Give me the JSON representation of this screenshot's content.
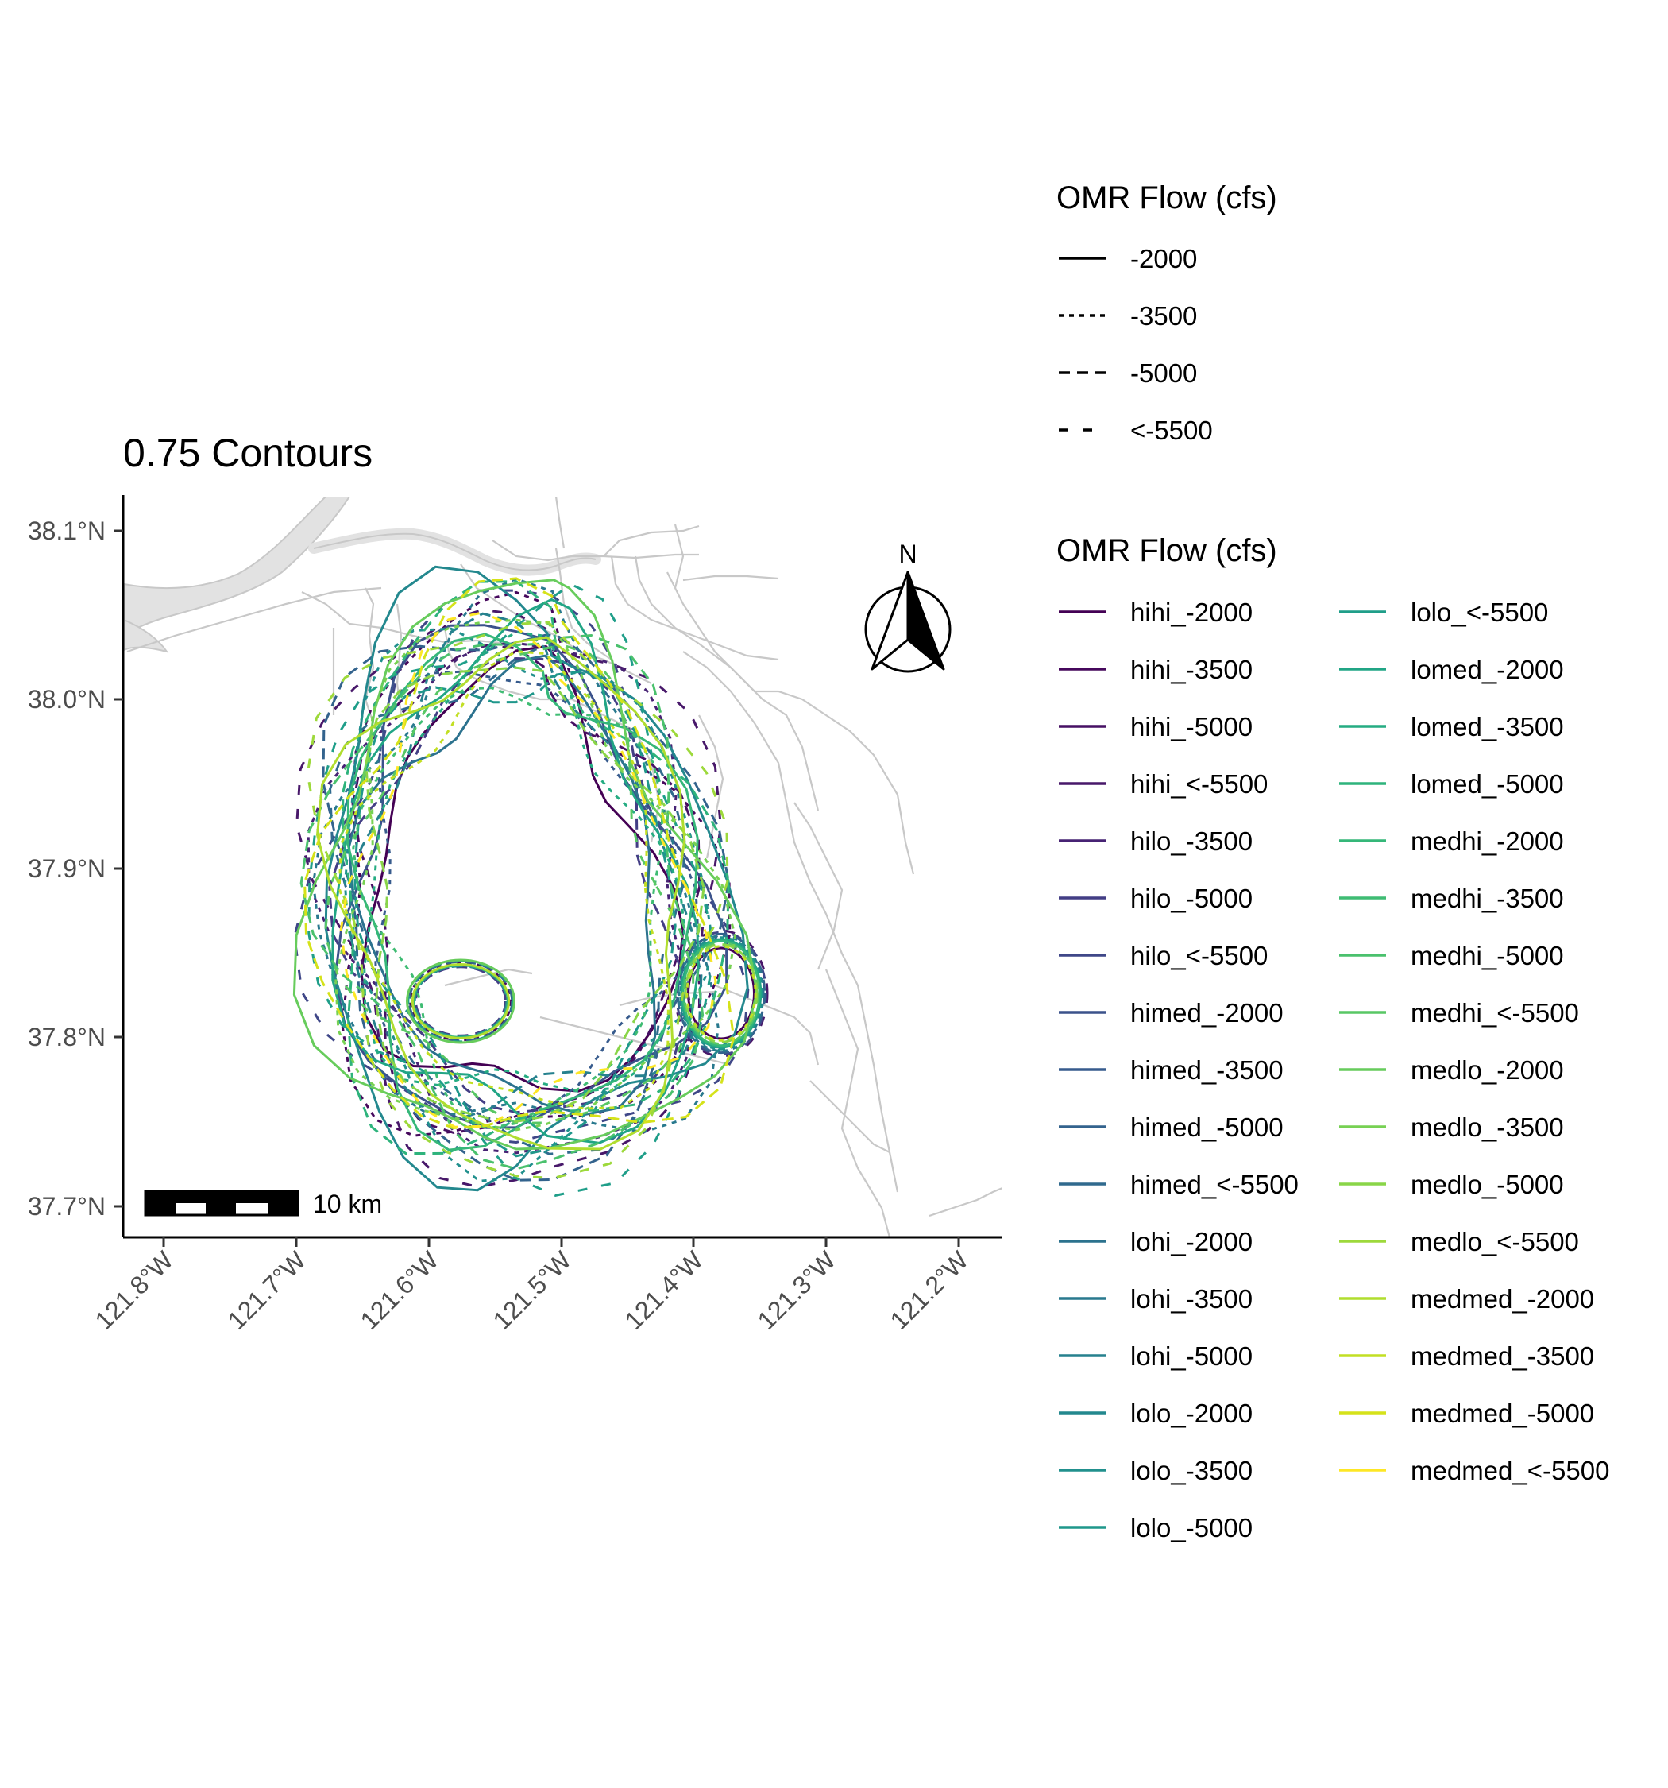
{
  "title": "0.75 Contours",
  "axes": {
    "x_ticks": [
      "121.8°W",
      "121.7°W",
      "121.6°W",
      "121.5°W",
      "121.4°W",
      "121.3°W",
      "121.2°W"
    ],
    "y_ticks": [
      "38.1°N",
      "38.0°N",
      "37.9°N",
      "37.8°N",
      "37.7°N"
    ]
  },
  "north_arrow": {
    "label": "N",
    "icon": "north-arrow-icon"
  },
  "scale_bar": {
    "label": "10 km",
    "icon": "scale-bar-icon"
  },
  "colors": {
    "basemap": "#c8c8c8",
    "water": "#e2e2e2",
    "axis": "#000000"
  },
  "legend_linetype": {
    "title": "OMR Flow (cfs)",
    "items": [
      {
        "label": "-2000",
        "dash": ""
      },
      {
        "label": "-3500",
        "dash": "6,7"
      },
      {
        "label": "-5000",
        "dash": "14,9"
      },
      {
        "label": "<-5500",
        "dash": "12,18"
      }
    ]
  },
  "legend_color": {
    "title": "OMR Flow (cfs)",
    "items": [
      {
        "label": "hihi_-2000",
        "color": "#440154"
      },
      {
        "label": "hihi_-3500",
        "color": "#46085c"
      },
      {
        "label": "hihi_-5000",
        "color": "#471064"
      },
      {
        "label": "hihi_<-5500",
        "color": "#48186a"
      },
      {
        "label": "hilo_-3500",
        "color": "#472374"
      },
      {
        "label": "hilo_-5000",
        "color": "#433e85"
      },
      {
        "label": "hilo_<-5500",
        "color": "#3f4788"
      },
      {
        "label": "himed_-2000",
        "color": "#3b528b"
      },
      {
        "label": "himed_-3500",
        "color": "#375b8d"
      },
      {
        "label": "himed_-5000",
        "color": "#33638d"
      },
      {
        "label": "himed_<-5500",
        "color": "#306a8e"
      },
      {
        "label": "lohi_-2000",
        "color": "#2c728e"
      },
      {
        "label": "lohi_-3500",
        "color": "#29798e"
      },
      {
        "label": "lohi_-5000",
        "color": "#26818e"
      },
      {
        "label": "lolo_-2000",
        "color": "#23888e"
      },
      {
        "label": "lolo_-3500",
        "color": "#21908d"
      },
      {
        "label": "lolo_-5000",
        "color": "#1f978b"
      },
      {
        "label": "lolo_<-5500",
        "color": "#1f9e89"
      },
      {
        "label": "lomed_-2000",
        "color": "#21a585"
      },
      {
        "label": "lomed_-3500",
        "color": "#25ac82"
      },
      {
        "label": "lomed_-5000",
        "color": "#2eb37c"
      },
      {
        "label": "medhi_-2000",
        "color": "#35b779"
      },
      {
        "label": "medhi_-3500",
        "color": "#3fbc73"
      },
      {
        "label": "medhi_-5000",
        "color": "#4ac16d"
      },
      {
        "label": "medhi_<-5500",
        "color": "#58c765"
      },
      {
        "label": "medlo_-2000",
        "color": "#67cc5c"
      },
      {
        "label": "medlo_-3500",
        "color": "#77d153"
      },
      {
        "label": "medlo_-5000",
        "color": "#89d548"
      },
      {
        "label": "medlo_<-5500",
        "color": "#9dd93b"
      },
      {
        "label": "medmed_-2000",
        "color": "#b0dd2f"
      },
      {
        "label": "medmed_-3500",
        "color": "#c2df23"
      },
      {
        "label": "medmed_-5000",
        "color": "#d5e21a"
      },
      {
        "label": "medmed_<-5500",
        "color": "#fde725"
      }
    ]
  }
}
